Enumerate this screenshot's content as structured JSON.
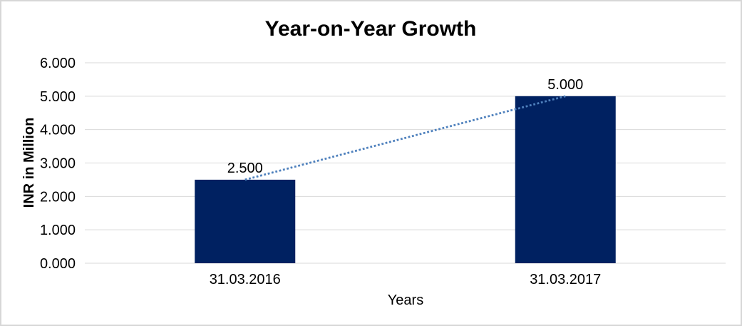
{
  "chart_data": {
    "type": "bar",
    "title": "Year-on-Year Growth",
    "categories": [
      "31.03.2016",
      "31.03.2017"
    ],
    "values": [
      2.5,
      5.0
    ],
    "data_labels": [
      "2.500",
      "5.000"
    ],
    "xlabel": "Years",
    "ylabel": "INR in Million",
    "ylim": [
      0,
      6
    ],
    "ytick_labels": [
      "0.000",
      "1.000",
      "2.000",
      "3.000",
      "4.000",
      "5.000",
      "6.000"
    ],
    "grid": true,
    "legend_position": "none",
    "trendline": {
      "type": "linear",
      "style": "dotted",
      "from_category": "31.03.2016",
      "to_category": "31.03.2017"
    },
    "colors": {
      "bar": "#002161",
      "trendline": "#4F81BD",
      "gridline": "#D9D9D9",
      "frame_border": "#D7D7D7",
      "text": "#000000",
      "background": "#FFFFFF"
    }
  }
}
